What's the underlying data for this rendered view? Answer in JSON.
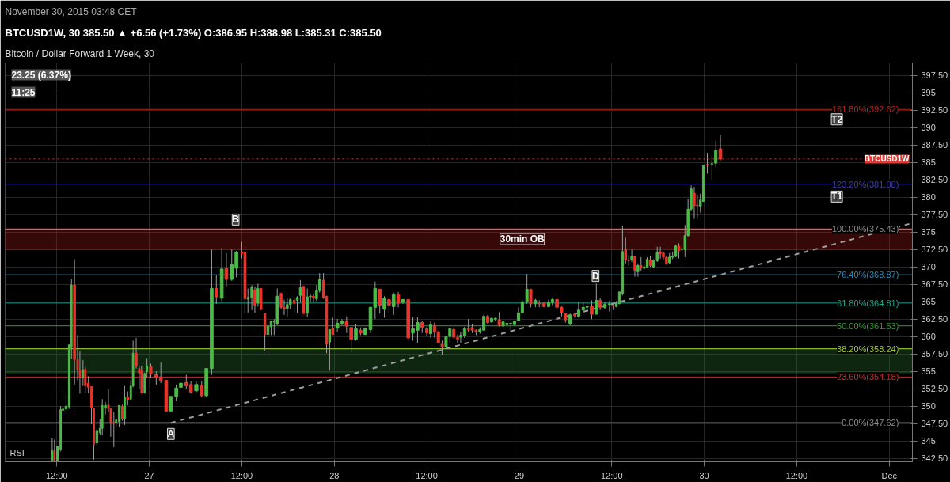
{
  "chart_data": {
    "type": "candlestick",
    "title": "Bitcoin / Dollar Forward 1 Week, 30",
    "subtitle": "BTCUSD1W, 30  385.50 ▲ +6.56 (+1.73%)  O:386.95  H:388.98  L:385.31  C:385.50",
    "annotations": [
      "November 30, 2015 03:48 CET",
      "RSI",
      "23.25 (6.37%)",
      "11:25",
      {
        "text": "A",
        "x": "2015-11-27T02:48",
        "y": 346.0
      },
      {
        "text": "B",
        "x": "2015-11-27T11:12",
        "y": 376.8
      },
      {
        "text": "D",
        "x": "2015-11-29T09:54",
        "y": 368.7
      },
      {
        "text": "T2",
        "x": "2015-11-30T17:12",
        "y": 391.2
      },
      {
        "text": "T1",
        "x": "2015-11-30T17:12",
        "y": 380.1
      }
    ],
    "colors": [
      "#4cbb47",
      "#e8362b",
      "#4cbb47",
      "#4cbb47",
      "#4cbb47",
      "#4cbb47",
      "#4cbb47",
      "#4cbb47",
      "#e8362b",
      "#e8362b",
      "#e8362b",
      "#4cbb47",
      "#e8362b",
      "#e8362b",
      "#e8362b",
      "#e8362b",
      "#4cbb47",
      "#4cbb47",
      "#4cbb47",
      "#4cbb47",
      "#e8362b",
      "#e8362b",
      "#e8362b",
      "#4cbb47",
      "#4cbb47",
      "#e8362b",
      "#4cbb47",
      "#e8362b",
      "#4cbb47",
      "#4cbb47",
      "#e8362b",
      "#e8362b",
      "#e8362b",
      "#4cbb47",
      "#4cbb47",
      "#e8362b",
      "#e8362b",
      "#e8362b",
      "#e8362b",
      "#4cbb47",
      "#4cbb47",
      "#4cbb47",
      "#e8362b",
      "#e8362b",
      "#4cbb47",
      "#e8362b",
      "#4cbb47",
      "#4cbb47",
      "#e8362b",
      "#4cbb47",
      "#e8362b",
      "#4cbb47",
      "#4cbb47",
      "#e8362b",
      "#e8362b",
      "#4cbb47",
      "#4cbb47",
      "#e8362b",
      "#4cbb47",
      "#e8362b",
      "#e8362b",
      "#4cbb47",
      "#4cbb47",
      "#4cbb47",
      "#4cbb47",
      "#e8362b",
      "#e8362b",
      "#4cbb47",
      "#4cbb47",
      "#e8362b",
      "#4cbb47",
      "#4cbb47",
      "#e8362b",
      "#4cbb47",
      "#4cbb47",
      "#e8362b",
      "#4cbb47",
      "#4cbb47",
      "#e8362b",
      "#e8362b",
      "#4cbb47",
      "#e8362b",
      "#4cbb47",
      "#4cbb47",
      "#e8362b",
      "#e8362b",
      "#4cbb47",
      "#e8362b",
      "#4cbb47",
      "#4cbb47",
      "#4cbb47",
      "#e8362b",
      "#4cbb47",
      "#e8362b",
      "#4cbb47",
      "#e8362b",
      "#4cbb47",
      "#e8362b",
      "#4cbb47",
      "#4cbb47",
      "#e8362b",
      "#e8362b",
      "#4cbb47",
      "#e8362b",
      "#e8362b",
      "#e8362b",
      "#4cbb47",
      "#4cbb47",
      "#e8362b",
      "#e8362b",
      "#4cbb47",
      "#4cbb47",
      "#e8362b",
      "#e8362b",
      "#e8362b",
      "#4cbb47",
      "#4cbb47",
      "#e8362b",
      "#4cbb47",
      "#4cbb47",
      "#e8362b",
      "#4cbb47",
      "#4cbb47",
      "#4cbb47",
      "#4cbb47",
      "#4cbb47",
      "#4cbb47",
      "#4cbb47",
      "#e8362b",
      "#4cbb47",
      "#e8362b",
      "#e8362b",
      "#4cbb47",
      "#4cbb47",
      "#e8362b",
      "#e8362b",
      "#e8362b",
      "#4cbb47",
      "#e8362b",
      "#4cbb47",
      "#4cbb47",
      "#4cbb47",
      "#e8362b",
      "#4cbb47",
      "#e8362b",
      "#4cbb47",
      "#4cbb47",
      "#e8362b",
      "#4cbb47",
      "#4cbb47",
      "#4cbb47",
      "#e8362b",
      "#e8362b",
      "#4cbb47",
      "#e8362b",
      "#4cbb47",
      "#e8362b",
      "#4cbb47",
      "#4cbb47",
      "#e8362b",
      "#4cbb47",
      "#4cbb47",
      "#e8362b",
      "#e8362b",
      "#e8362b",
      "#4cbb47",
      "#4cbb47",
      "#4cbb47",
      "#e8362b",
      "#4cbb47",
      "#4cbb47",
      "#4cbb47",
      "#4cbb47",
      "#e8362b",
      "#e8362b",
      "#4cbb47",
      "#4cbb47",
      "#e8362b",
      "#4cbb47",
      "#4cbb47",
      "#e8362b"
    ],
    "xlim": [
      "2015-11-26T05:18",
      "2015-12-01T03:00"
    ],
    "ylim": [
      342,
      399.3
    ],
    "xticks": [
      {
        "value": "2015-11-26T12:00",
        "label": "12:00"
      },
      {
        "value": "2015-11-27",
        "label": "27"
      },
      {
        "value": "2015-11-27T12:00",
        "label": "12:00"
      },
      {
        "value": "2015-11-28",
        "label": "28"
      },
      {
        "value": "2015-11-28T12:00",
        "label": "12:00"
      },
      {
        "value": "2015-11-29",
        "label": "29"
      },
      {
        "value": "2015-11-29T12:00",
        "label": "12:00"
      },
      {
        "value": "2015-11-30",
        "label": "30"
      },
      {
        "value": "2015-11-30T12:00",
        "label": "12:00"
      },
      {
        "value": "2015-12-01",
        "label": "Dec"
      }
    ],
    "yticks": [
      {
        "value": 342.5,
        "label": "342.50"
      },
      345,
      {
        "value": 347.5,
        "label": "347.50"
      },
      350,
      {
        "value": 352.5,
        "label": "352.50"
      },
      355,
      {
        "value": 357.5,
        "label": "357.50"
      },
      360,
      {
        "value": 362.5,
        "label": "362.50"
      },
      365,
      {
        "value": 367.5,
        "label": "367.50"
      },
      370,
      {
        "value": 372.5,
        "label": "372.50"
      },
      375,
      {
        "value": 377.5,
        "label": "377.50"
      },
      380,
      {
        "value": 382.5,
        "label": "382.50"
      },
      385,
      {
        "value": 387.5,
        "label": "387.50"
      },
      390,
      {
        "value": 392.5,
        "label": "392.50"
      },
      395,
      {
        "value": 397.5,
        "label": "397.50"
      }
    ],
    "grid": true,
    "ref_lines": [
      {
        "axis": "y",
        "value": 392.62,
        "label": "161.80%(392.62)",
        "color": "#b3261e"
      },
      {
        "axis": "y",
        "value": 381.88,
        "label": "123.20%(381.88)",
        "color": "#3a3ab8"
      },
      {
        "axis": "y",
        "value": 375.43,
        "label": "100.00%(375.43)",
        "color": "#8c8c8c"
      },
      {
        "axis": "y",
        "value": 368.87,
        "label": "76.40%(368.87)",
        "color": "#2a8ab8"
      },
      {
        "axis": "y",
        "value": 364.81,
        "label": "61.80%(364.81)",
        "color": "#1aa58a"
      },
      {
        "axis": "y",
        "value": 361.53,
        "label": "50.00%(361.53)",
        "color": "#2ca02c"
      },
      {
        "axis": "y",
        "value": 358.24,
        "label": "38.20%(358.24)",
        "color": "#9acd32"
      },
      {
        "axis": "y",
        "value": 354.18,
        "label": "23.60%(354.18)",
        "color": "#c0302a"
      },
      {
        "axis": "y",
        "value": 347.62,
        "label": "0.00%(347.62)",
        "color": "#8c8c8c"
      },
      {
        "axis": "y",
        "value": 385.5,
        "label": "BTCUSD1W",
        "color": "#e53935",
        "line_style": "dotted"
      }
    ],
    "bands": [
      {
        "axis": "y",
        "from": 372.5,
        "to": 375.5,
        "color": "#b71c1c",
        "label": "30min OB"
      },
      {
        "axis": "y",
        "from": 354.8,
        "to": 358.2,
        "color": "#2e7d32"
      }
    ],
    "series": [
      {
        "type": "line",
        "color": "#9e9e9e",
        "line_style": "dashed",
        "x": [
          "2015-11-27T02:48",
          "2015-12-01T03:00"
        ],
        "values": [
          347.6,
          376.3
        ]
      }
    ],
    "x": [
      "2015-11-26T11:24",
      "2015-11-26T11:42",
      "2015-11-26T12:06",
      "2015-11-26T12:30",
      "2015-11-26T12:48",
      "2015-11-26T13:12",
      "2015-11-26T13:36",
      "2015-11-26T13:54",
      "2015-11-26T14:18",
      "2015-11-26T14:42",
      "2015-11-26T15:00",
      "2015-11-26T15:24",
      "2015-11-26T15:42",
      "2015-11-26T16:06",
      "2015-11-26T16:30",
      "2015-11-26T16:48",
      "2015-11-26T17:12",
      "2015-11-26T17:36",
      "2015-11-26T17:54",
      "2015-11-26T18:18",
      "2015-11-26T18:42",
      "2015-11-26T19:00",
      "2015-11-26T19:24",
      "2015-11-26T19:42",
      "2015-11-26T20:06",
      "2015-11-26T20:30",
      "2015-11-26T20:48",
      "2015-11-26T21:12",
      "2015-11-26T21:36",
      "2015-11-26T21:54",
      "2015-11-26T22:18",
      "2015-11-26T22:42",
      "2015-11-26T23:00",
      "2015-11-26T23:24",
      "2015-11-26T23:42",
      "2015-11-27T00:12",
      "2015-11-27T00:54",
      "2015-11-27T01:30",
      "2015-11-27T02:12",
      "2015-11-27T02:48",
      "2015-11-27T03:30",
      "2015-11-27T04:06",
      "2015-11-27T04:48",
      "2015-11-27T05:24",
      "2015-11-27T06:06",
      "2015-11-27T06:48",
      "2015-11-27T07:24",
      "2015-11-27T08:06",
      "2015-11-27T08:42",
      "2015-11-27T09:24",
      "2015-11-27T10:00",
      "2015-11-27T10:42",
      "2015-11-27T11:18",
      "2015-11-27T12:00",
      "2015-11-27T12:24",
      "2015-11-27T12:48",
      "2015-11-27T13:18",
      "2015-11-27T13:42",
      "2015-11-27T14:06",
      "2015-11-27T14:30",
      "2015-11-27T15:00",
      "2015-11-27T15:24",
      "2015-11-27T15:48",
      "2015-11-27T16:12",
      "2015-11-27T16:36",
      "2015-11-27T17:06",
      "2015-11-27T17:30",
      "2015-11-27T17:54",
      "2015-11-27T18:18",
      "2015-11-27T18:48",
      "2015-11-27T19:12",
      "2015-11-27T19:36",
      "2015-11-27T20:00",
      "2015-11-27T20:30",
      "2015-11-27T20:54",
      "2015-11-27T21:18",
      "2015-11-27T21:42",
      "2015-11-27T22:06",
      "2015-11-27T22:36",
      "2015-11-27T23:00",
      "2015-11-27T23:24",
      "2015-11-27T23:48",
      "2015-11-28T00:24",
      "2015-11-28T01:00",
      "2015-11-28T01:36",
      "2015-11-28T02:12",
      "2015-11-28T02:48",
      "2015-11-28T03:24",
      "2015-11-28T04:00",
      "2015-11-28T04:42",
      "2015-11-28T05:18",
      "2015-11-28T05:54",
      "2015-11-28T06:30",
      "2015-11-28T07:06",
      "2015-11-28T07:42",
      "2015-11-28T08:18",
      "2015-11-28T08:54",
      "2015-11-28T09:36",
      "2015-11-28T10:12",
      "2015-11-28T10:48",
      "2015-11-28T11:24",
      "2015-11-28T12:00",
      "2015-11-28T12:30",
      "2015-11-28T13:00",
      "2015-11-28T13:30",
      "2015-11-28T14:00",
      "2015-11-28T14:30",
      "2015-11-28T15:00",
      "2015-11-28T15:30",
      "2015-11-28T16:00",
      "2015-11-28T16:24",
      "2015-11-28T16:54",
      "2015-11-28T17:24",
      "2015-11-28T17:54",
      "2015-11-28T18:24",
      "2015-11-28T18:54",
      "2015-11-28T19:24",
      "2015-11-28T19:54",
      "2015-11-28T20:24",
      "2015-11-28T20:54",
      "2015-11-28T21:24",
      "2015-11-28T21:54",
      "2015-11-28T22:24",
      "2015-11-28T22:54",
      "2015-11-28T23:24",
      "2015-11-28T23:54",
      "2015-11-29T00:24",
      "2015-11-29T01:00",
      "2015-11-29T01:30",
      "2015-11-29T02:06",
      "2015-11-29T02:36",
      "2015-11-29T03:12",
      "2015-11-29T03:48",
      "2015-11-29T04:18",
      "2015-11-29T04:54",
      "2015-11-29T05:30",
      "2015-11-29T06:00",
      "2015-11-29T06:36",
      "2015-11-29T07:12",
      "2015-11-29T07:42",
      "2015-11-29T08:18",
      "2015-11-29T08:48",
      "2015-11-29T09:24",
      "2015-11-29T10:00",
      "2015-11-29T10:30",
      "2015-11-29T11:06",
      "2015-11-29T11:42",
      "2015-11-29T12:12",
      "2015-11-29T12:36",
      "2015-11-29T13:00",
      "2015-11-29T13:24",
      "2015-11-29T13:48",
      "2015-11-29T14:12",
      "2015-11-29T14:36",
      "2015-11-29T15:00",
      "2015-11-29T15:24",
      "2015-11-29T15:48",
      "2015-11-29T16:12",
      "2015-11-29T16:36",
      "2015-11-29T17:00",
      "2015-11-29T17:24",
      "2015-11-29T17:54",
      "2015-11-29T18:18",
      "2015-11-29T18:42",
      "2015-11-29T19:06",
      "2015-11-29T19:30",
      "2015-11-29T19:54",
      "2015-11-29T20:18",
      "2015-11-29T20:42",
      "2015-11-29T21:06",
      "2015-11-29T21:30",
      "2015-11-29T21:54",
      "2015-11-29T22:18",
      "2015-11-29T22:42",
      "2015-11-29T23:06",
      "2015-11-29T23:30",
      "2015-11-29T23:54",
      "2015-11-30T00:24",
      "2015-11-30T01:00",
      "2015-11-30T01:30",
      "2015-11-30T02:06"
    ],
    "ohlc": [
      [
        342.2,
        345.4,
        342.2,
        343.6
      ],
      [
        343.6,
        345.2,
        342.2,
        342.2
      ],
      [
        342.2,
        344.3,
        342.2,
        344.2
      ],
      [
        343.8,
        350.0,
        343.5,
        349.5
      ],
      [
        349.4,
        352.2,
        348.1,
        349.6
      ],
      [
        349.6,
        351.6,
        348.9,
        350.0
      ],
      [
        349.9,
        358.8,
        349.6,
        358.8
      ],
      [
        358.4,
        368.3,
        356.8,
        367.4
      ],
      [
        367.4,
        371.1,
        353.1,
        356.7
      ],
      [
        356.7,
        360.2,
        353.7,
        355.2
      ],
      [
        355.2,
        357.9,
        351.8,
        354.1
      ],
      [
        354.1,
        356.6,
        352.9,
        355.2
      ],
      [
        355.3,
        355.8,
        351.9,
        352.9
      ],
      [
        353.3,
        354.3,
        351.9,
        352.7
      ],
      [
        352.8,
        352.8,
        347.4,
        349.7
      ],
      [
        349.7,
        349.7,
        342.3,
        344.5
      ],
      [
        344.7,
        346.8,
        344.2,
        346.5
      ],
      [
        346.2,
        348.2,
        345.9,
        346.8
      ],
      [
        346.8,
        351.0,
        345.8,
        350.1
      ],
      [
        349.7,
        350.6,
        348.8,
        350.1
      ],
      [
        350.2,
        352.4,
        349.1,
        349.6
      ],
      [
        349.6,
        349.6,
        345.6,
        347.6
      ],
      [
        347.7,
        349.2,
        344.1,
        347.6
      ],
      [
        347.6,
        348.2,
        347.0,
        348.0
      ],
      [
        347.8,
        350.1,
        347.0,
        350.1
      ],
      [
        350.0,
        350.2,
        347.9,
        348.2
      ],
      [
        348.2,
        352.9,
        347.3,
        351.3
      ],
      [
        351.3,
        352.1,
        350.1,
        350.9
      ],
      [
        351.0,
        353.7,
        350.9,
        352.9
      ],
      [
        352.9,
        359.4,
        352.7,
        357.6
      ],
      [
        357.6,
        359.8,
        355.4,
        355.7
      ],
      [
        355.4,
        355.8,
        352.5,
        354.7
      ],
      [
        355.1,
        355.8,
        351.8,
        351.9
      ],
      [
        351.9,
        354.7,
        351.8,
        354.7
      ],
      [
        355.0,
        356.9,
        354.0,
        355.8
      ],
      [
        355.7,
        356.1,
        354.0,
        354.6
      ],
      [
        354.5,
        355.0,
        353.1,
        354.2
      ],
      [
        354.2,
        356.3,
        353.3,
        353.7
      ],
      [
        353.7,
        353.7,
        349.1,
        349.3
      ],
      [
        349.3,
        351.4,
        349.3,
        351.4
      ],
      [
        351.4,
        353.1,
        350.7,
        352.6
      ],
      [
        352.7,
        354.5,
        352.5,
        353.3
      ],
      [
        353.4,
        354.5,
        352.5,
        352.9
      ],
      [
        353.1,
        353.6,
        351.8,
        352.0
      ],
      [
        352.2,
        353.6,
        352.0,
        353.1
      ],
      [
        353.0,
        353.6,
        351.3,
        351.5
      ],
      [
        351.5,
        355.4,
        351.3,
        355.4
      ],
      [
        355.4,
        372.5,
        354.5,
        366.9
      ],
      [
        366.9,
        368.9,
        364.7,
        365.7
      ],
      [
        365.5,
        372.7,
        365.1,
        369.7
      ],
      [
        369.8,
        372.0,
        367.2,
        368.2
      ],
      [
        368.2,
        372.5,
        368.0,
        370.3
      ],
      [
        369.8,
        372.3,
        368.5,
        372.1
      ],
      [
        372.1,
        373.6,
        371.2,
        371.9
      ],
      [
        372.1,
        372.3,
        363.4,
        365.4
      ],
      [
        365.4,
        366.9,
        363.4,
        365.6
      ],
      [
        365.6,
        367.4,
        363.8,
        367.1
      ],
      [
        366.7,
        367.2,
        363.4,
        364.5
      ],
      [
        364.8,
        367.6,
        364.3,
        366.9
      ],
      [
        366.9,
        366.9,
        363.8,
        363.9
      ],
      [
        363.3,
        363.3,
        358.0,
        360.3
      ],
      [
        360.3,
        362.0,
        357.4,
        361.5
      ],
      [
        361.4,
        362.2,
        360.2,
        362.2
      ],
      [
        362.1,
        362.5,
        360.2,
        362.2
      ],
      [
        361.8,
        366.9,
        361.6,
        365.8
      ],
      [
        366.2,
        366.3,
        364.0,
        364.2
      ],
      [
        364.2,
        365.3,
        363.1,
        364.0
      ],
      [
        364.0,
        365.6,
        362.9,
        364.6
      ],
      [
        364.6,
        365.6,
        364.0,
        365.3
      ],
      [
        365.2,
        365.6,
        363.4,
        364.8
      ],
      [
        365.2,
        365.8,
        363.4,
        365.6
      ],
      [
        365.9,
        368.1,
        364.9,
        367.0
      ],
      [
        367.2,
        367.2,
        363.3,
        363.3
      ],
      [
        363.4,
        366.9,
        362.8,
        365.7
      ],
      [
        365.7,
        366.2,
        364.9,
        365.8
      ],
      [
        365.8,
        366.2,
        365.0,
        365.5
      ],
      [
        365.4,
        367.4,
        365.1,
        366.6
      ],
      [
        366.6,
        369.1,
        366.3,
        368.2
      ],
      [
        368.1,
        369.1,
        365.4,
        365.6
      ],
      [
        365.8,
        365.8,
        357.6,
        358.9
      ],
      [
        359.2,
        361.0,
        355.1,
        361.0
      ],
      [
        361.2,
        362.7,
        360.2,
        360.3
      ],
      [
        361.2,
        362.5,
        360.7,
        361.9
      ],
      [
        361.9,
        362.5,
        361.6,
        362.2
      ],
      [
        362.2,
        362.9,
        360.5,
        361.5
      ],
      [
        361.3,
        361.3,
        357.7,
        359.6
      ],
      [
        359.6,
        361.8,
        359.4,
        361.1
      ],
      [
        360.9,
        361.3,
        360.2,
        360.5
      ],
      [
        360.3,
        361.3,
        360.2,
        361.1
      ],
      [
        361.0,
        364.2,
        360.5,
        364.2
      ],
      [
        364.2,
        367.9,
        362.5,
        366.9
      ],
      [
        366.8,
        366.8,
        363.3,
        364.5
      ],
      [
        363.9,
        365.8,
        362.7,
        365.5
      ],
      [
        365.3,
        365.5,
        363.4,
        364.5
      ],
      [
        364.3,
        366.3,
        363.1,
        366.0
      ],
      [
        366.0,
        366.4,
        364.2,
        364.8
      ],
      [
        364.9,
        365.4,
        364.7,
        365.3
      ],
      [
        365.3,
        365.4,
        359.4,
        359.8
      ],
      [
        360.5,
        362.8,
        359.4,
        361.1
      ],
      [
        360.9,
        362.8,
        359.1,
        362.0
      ],
      [
        362.0,
        362.3,
        360.5,
        361.3
      ],
      [
        361.1,
        361.4,
        360.0,
        360.5
      ],
      [
        360.4,
        362.2,
        359.8,
        361.7
      ],
      [
        361.6,
        362.0,
        359.8,
        360.6
      ],
      [
        360.7,
        360.7,
        359.1,
        359.1
      ],
      [
        358.9,
        359.4,
        357.3,
        358.5
      ],
      [
        358.5,
        361.3,
        358.3,
        360.0
      ],
      [
        360.0,
        361.3,
        359.1,
        361.1
      ],
      [
        361.0,
        361.3,
        359.8,
        359.9
      ],
      [
        359.9,
        360.3,
        359.1,
        359.6
      ],
      [
        359.9,
        360.7,
        359.1,
        360.2
      ],
      [
        360.1,
        361.4,
        359.8,
        361.1
      ],
      [
        361.1,
        362.5,
        360.7,
        361.0
      ],
      [
        361.3,
        361.8,
        360.5,
        360.9
      ],
      [
        360.9,
        361.0,
        360.2,
        360.7
      ],
      [
        360.7,
        361.3,
        360.4,
        361.0
      ],
      [
        360.9,
        363.1,
        360.9,
        362.9
      ],
      [
        362.9,
        363.1,
        361.8,
        362.0
      ],
      [
        362.1,
        362.7,
        362.0,
        362.6
      ],
      [
        362.5,
        362.7,
        362.2,
        362.6
      ],
      [
        362.4,
        363.5,
        361.4,
        361.6
      ],
      [
        361.5,
        362.2,
        361.4,
        362.1
      ],
      [
        361.7,
        362.0,
        361.5,
        361.9
      ],
      [
        361.8,
        362.0,
        360.9,
        361.9
      ],
      [
        361.7,
        362.3,
        361.5,
        362.2
      ],
      [
        362.3,
        364.2,
        362.2,
        363.4
      ],
      [
        363.4,
        365.2,
        363.3,
        365.0
      ],
      [
        365.0,
        369.0,
        364.7,
        366.8
      ],
      [
        366.8,
        366.8,
        364.2,
        364.7
      ],
      [
        364.7,
        365.4,
        364.2,
        365.2
      ],
      [
        364.8,
        365.2,
        364.2,
        364.7
      ],
      [
        364.8,
        365.0,
        364.2,
        364.3
      ],
      [
        364.3,
        365.3,
        364.2,
        364.9
      ],
      [
        364.9,
        365.5,
        364.5,
        365.3
      ],
      [
        365.3,
        365.7,
        364.0,
        364.2
      ],
      [
        364.2,
        364.3,
        362.9,
        363.4
      ],
      [
        363.3,
        363.4,
        362.0,
        362.4
      ],
      [
        361.9,
        363.3,
        361.6,
        363.1
      ],
      [
        363.2,
        363.4,
        362.7,
        363.0
      ],
      [
        362.9,
        365.0,
        362.7,
        363.8
      ],
      [
        363.8,
        364.9,
        363.4,
        364.2
      ],
      [
        364.2,
        365.0,
        363.8,
        364.3
      ],
      [
        364.4,
        365.2,
        362.5,
        363.2
      ],
      [
        363.2,
        367.6,
        363.2,
        365.2
      ],
      [
        365.2,
        365.5,
        363.8,
        364.2
      ],
      [
        364.2,
        364.9,
        364.0,
        364.6
      ],
      [
        364.6,
        365.1,
        363.6,
        364.7
      ],
      [
        364.5,
        364.7,
        363.8,
        364.4
      ],
      [
        364.3,
        365.1,
        364.2,
        364.8
      ],
      [
        364.7,
        366.4,
        364.7,
        366.4
      ],
      [
        366.2,
        375.9,
        365.9,
        372.2
      ],
      [
        372.5,
        374.2,
        370.5,
        371.0
      ],
      [
        371.0,
        371.7,
        370.2,
        370.9
      ],
      [
        371.0,
        372.5,
        370.7,
        371.5
      ],
      [
        371.5,
        371.5,
        368.6,
        369.5
      ],
      [
        369.3,
        370.5,
        368.6,
        370.2
      ],
      [
        370.2,
        371.4,
        369.4,
        369.9
      ],
      [
        369.8,
        370.5,
        369.6,
        370.0
      ],
      [
        370.0,
        371.4,
        369.8,
        371.1
      ],
      [
        371.0,
        371.6,
        370.0,
        370.2
      ],
      [
        370.0,
        371.1,
        369.8,
        370.9
      ],
      [
        370.9,
        372.9,
        370.7,
        372.1
      ],
      [
        372.2,
        372.9,
        371.2,
        371.9
      ],
      [
        372.0,
        372.2,
        371.1,
        371.4
      ],
      [
        371.4,
        371.4,
        370.3,
        370.5
      ],
      [
        370.6,
        372.0,
        370.4,
        371.4
      ],
      [
        371.4,
        372.2,
        371.1,
        371.5
      ],
      [
        371.5,
        373.2,
        371.4,
        373.0
      ],
      [
        373.0,
        373.4,
        371.2,
        372.3
      ],
      [
        372.5,
        372.9,
        372.3,
        372.6
      ],
      [
        372.5,
        376.0,
        371.4,
        374.5
      ],
      [
        374.5,
        379.8,
        374.3,
        378.3
      ],
      [
        378.3,
        381.7,
        378.1,
        381.2
      ],
      [
        380.6,
        381.5,
        376.9,
        378.8
      ],
      [
        378.9,
        380.3,
        376.9,
        378.8
      ],
      [
        378.7,
        380.5,
        377.8,
        379.6
      ],
      [
        379.4,
        384.7,
        379.4,
        384.6
      ],
      [
        384.7,
        386.4,
        383.4,
        384.6
      ],
      [
        384.8,
        385.9,
        382.5,
        384.8
      ],
      [
        384.9,
        388.1,
        384.3,
        386.8
      ],
      [
        386.95,
        388.98,
        385.31,
        385.5
      ]
    ]
  }
}
